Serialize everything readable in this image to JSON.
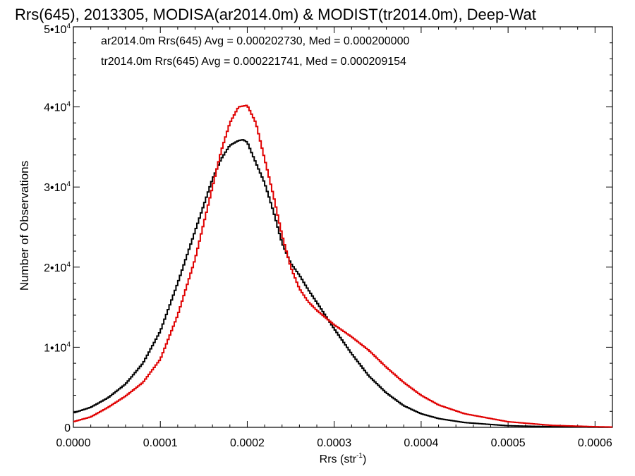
{
  "chart_data": {
    "type": "line",
    "title": "Rrs(645), 2013305, MODISA(ar2014.0m) & MODIST(tr2014.0m), Deep-Wat",
    "xlabel_main": "Rrs (str",
    "xlabel_sup": "-1",
    "xlabel_close": ")",
    "ylabel": "Number of Observations",
    "xlim": [
      0,
      0.00062
    ],
    "ylim": [
      0,
      50000
    ],
    "x_ticks": [
      {
        "value": 0.0,
        "label": "0.0000"
      },
      {
        "value": 0.0001,
        "label": "0.0001"
      },
      {
        "value": 0.0002,
        "label": "0.0002"
      },
      {
        "value": 0.0003,
        "label": "0.0003"
      },
      {
        "value": 0.0004,
        "label": "0.0004"
      },
      {
        "value": 0.0005,
        "label": "0.0005"
      },
      {
        "value": 0.0006,
        "label": "0.0006"
      }
    ],
    "y_ticks": [
      {
        "value": 0,
        "label": "0"
      },
      {
        "value": 10000,
        "mant": "1•10",
        "exp": "4"
      },
      {
        "value": 20000,
        "mant": "2•10",
        "exp": "4"
      },
      {
        "value": 30000,
        "mant": "3•10",
        "exp": "4"
      },
      {
        "value": 40000,
        "mant": "4•10",
        "exp": "4"
      },
      {
        "value": 50000,
        "mant": "5•10",
        "exp": "4"
      }
    ],
    "grid": false,
    "legend_position": "top-left",
    "legend": [
      {
        "text": "ar2014.0m Rrs(645) Avg = 0.000202730, Med = 0.000200000",
        "color": "#000000"
      },
      {
        "text": "tr2014.0m Rrs(645) Avg = 0.000221741, Med = 0.000209154",
        "color": "#e00000"
      }
    ],
    "series": [
      {
        "color": "#000000",
        "x": [
          0.0,
          2e-05,
          4e-05,
          6e-05,
          8e-05,
          0.0001,
          0.00012,
          0.00014,
          0.00016,
          0.00017,
          0.00018,
          0.00019,
          0.000195,
          0.0002,
          0.00021,
          0.00022,
          0.00023,
          0.00024,
          0.00025,
          0.00026,
          0.00027,
          0.00028,
          0.0003,
          0.00032,
          0.00034,
          0.00036,
          0.00038,
          0.0004,
          0.00042,
          0.00045,
          0.0005,
          0.00055,
          0.0006,
          0.00062
        ],
        "y": [
          1800,
          2500,
          3700,
          5400,
          8000,
          12000,
          18000,
          24500,
          31000,
          33500,
          35200,
          35800,
          35900,
          35600,
          33000,
          30500,
          27000,
          23000,
          20500,
          19000,
          17200,
          15600,
          12300,
          9200,
          6400,
          4300,
          2700,
          1700,
          1100,
          600,
          200,
          80,
          30,
          20
        ]
      },
      {
        "color": "#e00000",
        "x": [
          0.0,
          2e-05,
          4e-05,
          6e-05,
          8e-05,
          0.0001,
          0.00012,
          0.00014,
          0.00016,
          0.00017,
          0.00018,
          0.00019,
          0.0002,
          0.00021,
          0.00022,
          0.00023,
          0.00024,
          0.00025,
          0.00026,
          0.00027,
          0.00028,
          0.0003,
          0.00032,
          0.00034,
          0.00036,
          0.00038,
          0.0004,
          0.00042,
          0.00045,
          0.0005,
          0.00055,
          0.0006,
          0.00062
        ],
        "y": [
          700,
          1300,
          2500,
          3900,
          5600,
          8500,
          14000,
          21000,
          30000,
          34500,
          38000,
          40000,
          40200,
          38000,
          33500,
          29000,
          24000,
          20000,
          17300,
          15700,
          14600,
          12800,
          11300,
          9600,
          7500,
          5600,
          4000,
          2800,
          1700,
          700,
          250,
          80,
          40
        ]
      }
    ]
  }
}
